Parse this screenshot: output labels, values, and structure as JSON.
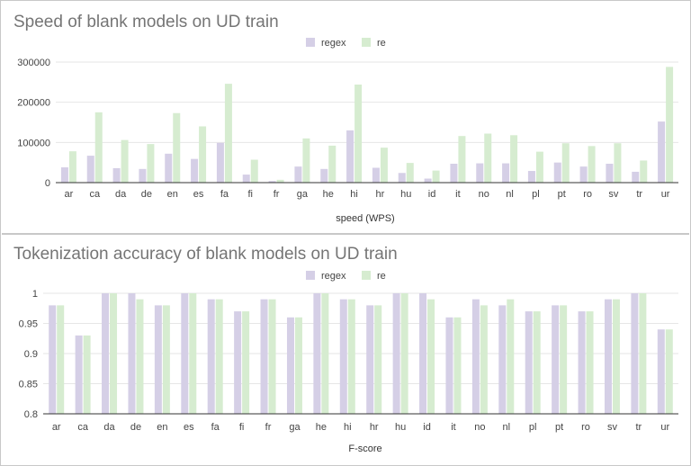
{
  "colors": {
    "regex": "#d5cfe6",
    "re": "#d6ecd0",
    "grid": "#e6e6e6",
    "axis": "#333333"
  },
  "chart_data": [
    {
      "type": "bar",
      "title": "Speed of blank models on UD train",
      "xlabel": "speed (WPS)",
      "ylabel": "",
      "legend_position": "top-center",
      "grid": true,
      "ylim": [
        0,
        300000
      ],
      "yticks": [
        0,
        100000,
        200000,
        300000
      ],
      "ytick_labels": [
        "0",
        "100000",
        "200000",
        "300000"
      ],
      "categories": [
        "ar",
        "ca",
        "da",
        "de",
        "en",
        "es",
        "fa",
        "fi",
        "fr",
        "ga",
        "he",
        "hi",
        "hr",
        "hu",
        "id",
        "it",
        "no",
        "nl",
        "pl",
        "pt",
        "ro",
        "sv",
        "tr",
        "ur"
      ],
      "series": [
        {
          "name": "regex",
          "values": [
            38000,
            67000,
            36000,
            34000,
            72000,
            59000,
            99000,
            20000,
            4000,
            40000,
            34000,
            130000,
            37000,
            24000,
            10000,
            47000,
            48000,
            48000,
            29000,
            50000,
            40000,
            47000,
            27000,
            152000
          ]
        },
        {
          "name": "re",
          "values": [
            78000,
            175000,
            106000,
            96000,
            173000,
            140000,
            246000,
            57000,
            7000,
            110000,
            92000,
            244000,
            87000,
            49000,
            30000,
            116000,
            122000,
            118000,
            77000,
            98000,
            91000,
            98000,
            55000,
            288000
          ]
        }
      ]
    },
    {
      "type": "bar",
      "title": "Tokenization accuracy of blank models on UD train",
      "xlabel": "F-score",
      "ylabel": "",
      "legend_position": "top-center",
      "grid": true,
      "ylim": [
        0.8,
        1.0
      ],
      "yticks": [
        0.8,
        0.85,
        0.9,
        0.95,
        1.0
      ],
      "ytick_labels": [
        "0.8",
        "0.85",
        "0.9",
        "0.95",
        "1"
      ],
      "categories": [
        "ar",
        "ca",
        "da",
        "de",
        "en",
        "es",
        "fa",
        "fi",
        "fr",
        "ga",
        "he",
        "hi",
        "hr",
        "hu",
        "id",
        "it",
        "no",
        "nl",
        "pl",
        "pt",
        "ro",
        "sv",
        "tr",
        "ur"
      ],
      "series": [
        {
          "name": "regex",
          "values": [
            0.98,
            0.93,
            1.0,
            1.0,
            0.98,
            1.0,
            0.99,
            0.97,
            0.99,
            0.96,
            1.0,
            0.99,
            0.98,
            1.0,
            1.0,
            0.96,
            0.99,
            0.98,
            0.97,
            0.98,
            0.97,
            0.99,
            1.0,
            0.94
          ]
        },
        {
          "name": "re",
          "values": [
            0.98,
            0.93,
            1.0,
            0.99,
            0.98,
            1.0,
            0.99,
            0.97,
            0.99,
            0.96,
            1.0,
            0.99,
            0.98,
            1.0,
            0.99,
            0.96,
            0.98,
            0.99,
            0.97,
            0.98,
            0.97,
            0.99,
            1.0,
            0.94
          ]
        }
      ]
    }
  ]
}
